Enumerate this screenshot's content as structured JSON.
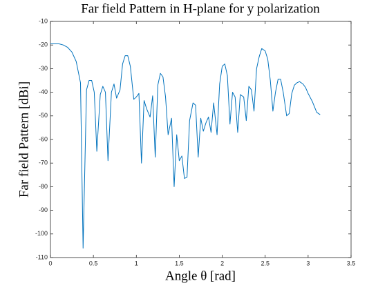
{
  "chart_data": {
    "type": "line",
    "title": "Far field Pattern in H-plane for y polarization",
    "xlabel": "Angle θ [rad]",
    "ylabel": "Far field Pattern [dBi]",
    "color": "#0072bd",
    "x": [
      0,
      0.1,
      0.15,
      0.2,
      0.25,
      0.3,
      0.35,
      0.38,
      0.42,
      0.45,
      0.48,
      0.51,
      0.54,
      0.58,
      0.61,
      0.64,
      0.67,
      0.71,
      0.74,
      0.77,
      0.81,
      0.84,
      0.87,
      0.9,
      0.93,
      0.97,
      1.0,
      1.03,
      1.06,
      1.09,
      1.12,
      1.16,
      1.19,
      1.22,
      1.25,
      1.28,
      1.31,
      1.34,
      1.37,
      1.41,
      1.44,
      1.47,
      1.5,
      1.53,
      1.56,
      1.59,
      1.62,
      1.66,
      1.69,
      1.72,
      1.75,
      1.78,
      1.81,
      1.84,
      1.87,
      1.9,
      1.94,
      1.97,
      2.0,
      2.03,
      2.06,
      2.09,
      2.12,
      2.15,
      2.18,
      2.21,
      2.25,
      2.28,
      2.31,
      2.34,
      2.37,
      2.4,
      2.43,
      2.46,
      2.5,
      2.53,
      2.56,
      2.59,
      2.62,
      2.65,
      2.68,
      2.71,
      2.75,
      2.78,
      2.81,
      2.84,
      2.87,
      2.9,
      2.94,
      2.97,
      3.0,
      3.05,
      3.1,
      3.14
    ],
    "values": [
      -19.5,
      -19.5,
      -20,
      -21,
      -23,
      -27,
      -36,
      -106,
      -39,
      -35,
      -35,
      -40,
      -65,
      -41,
      -37.5,
      -40,
      -69,
      -40,
      -36.5,
      -42.5,
      -39,
      -28,
      -24.5,
      -24.5,
      -29,
      -43,
      -42,
      -40.5,
      -70,
      -43.5,
      -47,
      -50.5,
      -41.5,
      -67.5,
      -37,
      -32,
      -33.5,
      -42,
      -58,
      -51,
      -80,
      -58,
      -69,
      -67,
      -76.5,
      -76,
      -52,
      -44.5,
      -45.5,
      -67.5,
      -51,
      -56.5,
      -53,
      -50.5,
      -57,
      -44.5,
      -58,
      -36.5,
      -29,
      -28,
      -33,
      -53.5,
      -40,
      -42,
      -57,
      -41,
      -42,
      -52,
      -37.5,
      -39,
      -48,
      -30,
      -25,
      -21.5,
      -22.5,
      -26,
      -35,
      -48,
      -40,
      -34.5,
      -34.5,
      -40,
      -50,
      -49,
      -40.5,
      -37,
      -36,
      -35.5,
      -36.5,
      -38,
      -40.5,
      -44,
      -48.5,
      -49.5
    ],
    "xlim": [
      0,
      3.5
    ],
    "xticks": [
      0,
      0.5,
      1,
      1.5,
      2,
      2.5,
      3,
      3.5
    ],
    "ylim": [
      -110,
      -10
    ],
    "yticks": [
      -110,
      -100,
      -90,
      -80,
      -70,
      -60,
      -50,
      -40,
      -30,
      -20,
      -10
    ]
  }
}
